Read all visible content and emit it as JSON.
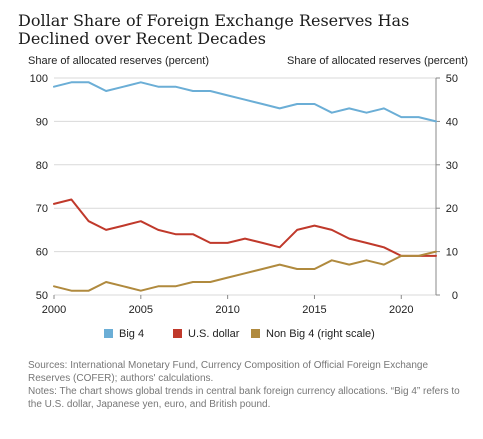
{
  "chart_data": {
    "type": "line",
    "title": "Dollar Share of Foreign Exchange Reserves Has Declined over Recent Decades",
    "ylabel_left": "Share of allocated reserves (percent)",
    "ylabel_right": "Share of allocated reserves (percent)",
    "xlim": [
      2000,
      2022
    ],
    "ylim_left": [
      50,
      100
    ],
    "ylim_right": [
      0,
      50
    ],
    "x_ticks": [
      2000,
      2005,
      2010,
      2015,
      2020
    ],
    "y_ticks_left": [
      50,
      60,
      70,
      80,
      90,
      100
    ],
    "y_ticks_right": [
      0,
      10,
      20,
      30,
      40,
      50
    ],
    "grid": true,
    "legend_position": "bottom",
    "x": [
      2000,
      2001,
      2002,
      2003,
      2004,
      2005,
      2006,
      2007,
      2008,
      2009,
      2010,
      2011,
      2012,
      2013,
      2014,
      2015,
      2016,
      2017,
      2018,
      2019,
      2020,
      2021,
      2022
    ],
    "series": [
      {
        "name": "Big 4",
        "axis": "left",
        "color": "#6baed6",
        "values": [
          98,
          99,
          99,
          97,
          98,
          99,
          98,
          98,
          97,
          97,
          96,
          95,
          94,
          93,
          94,
          94,
          92,
          93,
          92,
          93,
          91,
          91,
          90
        ]
      },
      {
        "name": "U.S. dollar",
        "axis": "left",
        "color": "#c0392b",
        "values": [
          71,
          72,
          67,
          65,
          66,
          67,
          65,
          64,
          64,
          62,
          62,
          63,
          62,
          61,
          65,
          66,
          65,
          63,
          62,
          61,
          59,
          59,
          59
        ]
      },
      {
        "name": "Non Big 4 (right scale)",
        "axis": "right",
        "color": "#b08a3e",
        "values": [
          2,
          1,
          1,
          3,
          2,
          1,
          2,
          2,
          3,
          3,
          4,
          5,
          6,
          7,
          6,
          6,
          8,
          7,
          8,
          7,
          9,
          9,
          10
        ]
      }
    ]
  },
  "sources_text": "Sources: International Monetary Fund, Currency Composition of Official Foreign Exchange Reserves (COFER); authors' calculations.",
  "notes_text": "Notes: The chart shows global trends in central bank foreign currency allocations. “Big 4” refers to the U.S. dollar, Japanese yen, euro, and British pound."
}
